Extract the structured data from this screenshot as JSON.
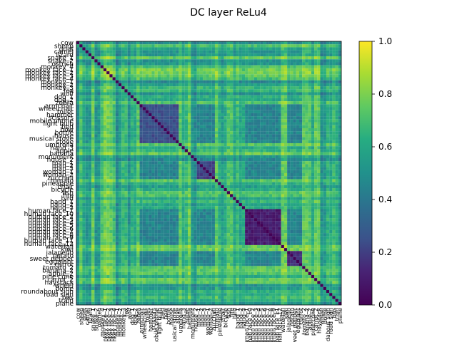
{
  "chart_data": {
    "type": "heatmap",
    "title": "DC layer ReLu4",
    "labels": [
      "cow",
      "sheep",
      "goat",
      "camel",
      "lizard",
      "snake_1",
      "snake_2",
      "ostrich",
      "monkey_4",
      "monkey face_1",
      "monkey face_2",
      "monkey face_3",
      "monkey face_4",
      "monkey_1",
      "monkey_2",
      "monkey_3",
      "fox",
      "wolf",
      "dog_1",
      "dog_2",
      "zebra",
      "armchair",
      "wheelchair",
      "toilet",
      "hammer",
      "scissors",
      "mobile phone",
      "light bulb",
      "bed",
      "bow",
      "bottle",
      "house",
      "musical stove",
      "stove",
      "umbrella",
      "hand_3",
      "apple",
      "banana",
      "monument",
      "house_2",
      "man_1",
      "man_2",
      "man_3",
      "woman_1",
      "woman_2",
      "zucchini",
      "tomato",
      "pineapple",
      "chair",
      "bicycle",
      "fish",
      "fire",
      "bird",
      "hand_1",
      "hand_2",
      "hand_3",
      "human face_1",
      "human face_10",
      "human face_2",
      "human face_3",
      "human face_4",
      "human face_5",
      "human face_6",
      "human face_7",
      "human face_8",
      "human face_9",
      "human face_11",
      "human face_12",
      "waterfall",
      "kiwi",
      "jalapeño",
      "potato",
      "sweet pepper",
      "eggplant",
      "carrot",
      "tomato_2",
      "banana_2",
      "apple_2",
      "pine cone",
      "carrot_2",
      "haystack",
      "wheel",
      "dome",
      "roundabout sign",
      "road sign",
      "bus",
      "train",
      "plane"
    ],
    "value_range": [
      0.0,
      1.0
    ],
    "colormap": "viridis",
    "colorbar_ticks": [
      "0.0",
      "0.2",
      "0.4",
      "0.6",
      "0.8",
      "1.0"
    ],
    "diagonal_value": 0.0,
    "cluster_blocks": [
      {
        "from": 21,
        "to": 33,
        "value": 0.25
      },
      {
        "from": 40,
        "to": 45,
        "value": 0.2
      },
      {
        "from": 56,
        "to": 67,
        "value": 0.1
      },
      {
        "from": 70,
        "to": 74,
        "value": 0.15
      }
    ]
  }
}
